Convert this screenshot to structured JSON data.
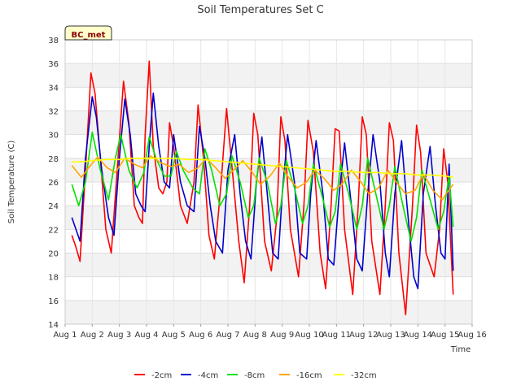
{
  "chart_data": {
    "type": "line",
    "title": "Soil Temperatures Set C",
    "xlabel": "Time",
    "ylabel": "Soil Temperature (C)",
    "badge": "BC_met",
    "ylim": [
      14,
      38
    ],
    "yticks": [
      14,
      16,
      18,
      20,
      22,
      24,
      26,
      28,
      30,
      32,
      34,
      36,
      38
    ],
    "xlim": [
      1,
      16
    ],
    "xticks": [
      {
        "value": 1,
        "label": "Aug 1"
      },
      {
        "value": 2,
        "label": "Aug 2"
      },
      {
        "value": 3,
        "label": "Aug 3"
      },
      {
        "value": 4,
        "label": "Aug 4"
      },
      {
        "value": 5,
        "label": "Aug 5"
      },
      {
        "value": 6,
        "label": "Aug 6"
      },
      {
        "value": 7,
        "label": "Aug 7"
      },
      {
        "value": 8,
        "label": "Aug 8"
      },
      {
        "value": 9,
        "label": "Aug 9"
      },
      {
        "value": 10,
        "label": "Aug 10"
      },
      {
        "value": 11,
        "label": "Aug 11"
      },
      {
        "value": 12,
        "label": "Aug 12"
      },
      {
        "value": 13,
        "label": "Aug 13"
      },
      {
        "value": 14,
        "label": "Aug 14"
      },
      {
        "value": 15,
        "label": "Aug 15"
      },
      {
        "value": 16,
        "label": "Aug 16"
      }
    ],
    "grid": true,
    "legend_position": "bottom",
    "series": [
      {
        "name": "-2cm",
        "color": "#ff0000",
        "x": [
          1.25,
          1.4,
          1.55,
          1.75,
          1.95,
          2.1,
          2.3,
          2.5,
          2.7,
          2.95,
          3.15,
          3.35,
          3.55,
          3.72,
          3.85,
          3.95,
          4.1,
          4.25,
          4.45,
          4.6,
          4.75,
          4.85,
          5.0,
          5.25,
          5.5,
          5.75,
          5.9,
          6.1,
          6.3,
          6.5,
          6.75,
          6.95,
          7.2,
          7.4,
          7.6,
          7.8,
          7.95,
          8.1,
          8.35,
          8.6,
          8.8,
          8.95,
          9.1,
          9.3,
          9.6,
          9.8,
          9.95,
          10.15,
          10.4,
          10.6,
          10.8,
          10.95,
          11.1,
          11.3,
          11.6,
          11.8,
          11.95,
          12.1,
          12.3,
          12.6,
          12.8,
          12.95,
          13.1,
          13.3,
          13.55,
          13.8,
          13.95,
          14.1,
          14.3,
          14.6,
          14.8,
          14.95,
          15.1,
          15.3
        ],
        "y": [
          21.5,
          20.5,
          19.3,
          27,
          35.2,
          33.5,
          28,
          22,
          20,
          28,
          34.5,
          31,
          24,
          23,
          22.5,
          30,
          36.2,
          29,
          25.5,
          25,
          26,
          31,
          29,
          24,
          22.5,
          26,
          32.5,
          28,
          21.5,
          19.5,
          26,
          32.2,
          26,
          21,
          17.5,
          24,
          31.8,
          30,
          21,
          18.5,
          23,
          31.5,
          29.5,
          22,
          18,
          24,
          31.2,
          28.5,
          20,
          17,
          24,
          30.5,
          30.3,
          22,
          16.5,
          24,
          31.5,
          30,
          21,
          16.5,
          24,
          31,
          29.5,
          20,
          14.8,
          24,
          30.8,
          28.5,
          20,
          18,
          22,
          28.8,
          26,
          16.5
        ]
      },
      {
        "name": "-4cm",
        "color": "#0000cc",
        "x": [
          1.25,
          1.4,
          1.55,
          1.75,
          2.0,
          2.15,
          2.35,
          2.6,
          2.8,
          3.0,
          3.2,
          3.4,
          3.6,
          3.8,
          3.95,
          4.1,
          4.25,
          4.45,
          4.65,
          4.85,
          5.0,
          5.25,
          5.5,
          5.75,
          5.95,
          6.15,
          6.35,
          6.55,
          6.8,
          7.0,
          7.25,
          7.45,
          7.65,
          7.85,
          8.05,
          8.25,
          8.45,
          8.65,
          8.85,
          9.0,
          9.2,
          9.45,
          9.65,
          9.9,
          10.05,
          10.25,
          10.5,
          10.7,
          10.9,
          11.1,
          11.3,
          11.55,
          11.75,
          11.95,
          12.15,
          12.35,
          12.6,
          12.8,
          12.95,
          13.15,
          13.4,
          13.6,
          13.85,
          14.0,
          14.2,
          14.45,
          14.65,
          14.85,
          15.0,
          15.15,
          15.3
        ],
        "y": [
          23,
          22,
          21,
          28,
          33.2,
          31.5,
          27,
          23,
          21.5,
          28,
          33,
          30,
          25,
          24,
          23.5,
          29,
          33.5,
          29,
          26,
          25.5,
          30,
          26,
          24,
          23.5,
          30.7,
          28,
          24,
          21,
          20,
          27,
          30,
          25,
          21,
          19.5,
          26,
          29.8,
          25,
          20,
          19.5,
          25,
          30,
          26,
          20,
          19.5,
          25,
          29.5,
          25,
          19.5,
          19,
          25,
          29.3,
          24,
          19.5,
          18.5,
          25,
          30,
          26,
          20,
          18,
          25,
          29.5,
          24,
          18,
          17,
          25,
          29,
          24,
          20,
          19.5,
          27.5,
          18.5
        ]
      },
      {
        "name": "-8cm",
        "color": "#00e000",
        "x": [
          1.25,
          1.5,
          1.75,
          2.0,
          2.3,
          2.6,
          2.85,
          3.05,
          3.35,
          3.65,
          3.9,
          4.1,
          4.35,
          4.65,
          4.9,
          5.1,
          5.35,
          5.7,
          5.95,
          6.15,
          6.4,
          6.7,
          6.95,
          7.15,
          7.45,
          7.75,
          7.95,
          8.15,
          8.45,
          8.75,
          8.95,
          9.15,
          9.45,
          9.75,
          9.95,
          10.15,
          10.45,
          10.75,
          10.95,
          11.15,
          11.45,
          11.75,
          11.95,
          12.15,
          12.45,
          12.75,
          12.95,
          13.15,
          13.45,
          13.75,
          13.95,
          14.15,
          14.45,
          14.75,
          14.95,
          15.15,
          15.3
        ],
        "y": [
          25.8,
          24,
          26,
          30.2,
          27,
          24.5,
          28,
          30,
          27,
          25.5,
          26.8,
          29.8,
          28,
          26.5,
          26.5,
          28.6,
          27,
          25.5,
          25,
          28.8,
          27,
          24,
          25,
          28.2,
          26,
          23,
          24,
          28,
          26,
          22.5,
          24,
          27.8,
          25.5,
          22.5,
          24,
          27.5,
          25,
          22.2,
          23.5,
          27.5,
          25,
          22,
          24,
          28,
          25,
          22,
          24,
          27.3,
          24,
          21,
          23,
          27,
          24.5,
          22,
          23.5,
          26.5,
          22.2
        ]
      },
      {
        "name": "-16cm",
        "color": "#ffa500",
        "x": [
          1.25,
          1.6,
          1.9,
          2.2,
          2.55,
          2.85,
          3.2,
          3.55,
          3.85,
          4.15,
          4.55,
          4.9,
          5.2,
          5.55,
          5.9,
          6.2,
          6.55,
          6.9,
          7.2,
          7.55,
          7.9,
          8.2,
          8.55,
          8.9,
          9.2,
          9.55,
          9.9,
          10.2,
          10.55,
          10.9,
          11.2,
          11.55,
          11.9,
          12.2,
          12.55,
          12.9,
          13.2,
          13.55,
          13.9,
          14.2,
          14.55,
          14.9,
          15.1,
          15.3
        ],
        "y": [
          27.4,
          26.4,
          27.3,
          28.1,
          27.2,
          26.8,
          28,
          27.5,
          27.2,
          28.2,
          27.6,
          27.3,
          27.5,
          26.8,
          27.2,
          28,
          27.2,
          26.3,
          27,
          27.8,
          26.8,
          25.8,
          26.5,
          27.6,
          26.5,
          25.5,
          26,
          27,
          26.3,
          25.3,
          25.8,
          27,
          26,
          25,
          25.5,
          27,
          26,
          25,
          25.3,
          26.7,
          25.3,
          24.5,
          25.2,
          25.8
        ]
      },
      {
        "name": "-32cm",
        "color": "#ffff00",
        "x": [
          1.25,
          1.6,
          2.0,
          2.5,
          3.0,
          3.5,
          4.0,
          4.5,
          5.0,
          5.5,
          6.0,
          6.5,
          7.0,
          7.5,
          8.0,
          8.5,
          9.0,
          9.5,
          10.0,
          10.5,
          11.0,
          11.5,
          12.0,
          12.5,
          13.0,
          13.5,
          14.0,
          14.5,
          15.0,
          15.3
        ],
        "y": [
          27.7,
          27.7,
          27.8,
          27.9,
          27.9,
          28.0,
          28.0,
          28.0,
          28.0,
          27.9,
          27.9,
          27.8,
          27.7,
          27.6,
          27.5,
          27.4,
          27.3,
          27.2,
          27.1,
          27.0,
          26.9,
          26.9,
          26.8,
          26.8,
          26.7,
          26.7,
          26.6,
          26.6,
          26.5,
          26.4
        ]
      }
    ]
  }
}
